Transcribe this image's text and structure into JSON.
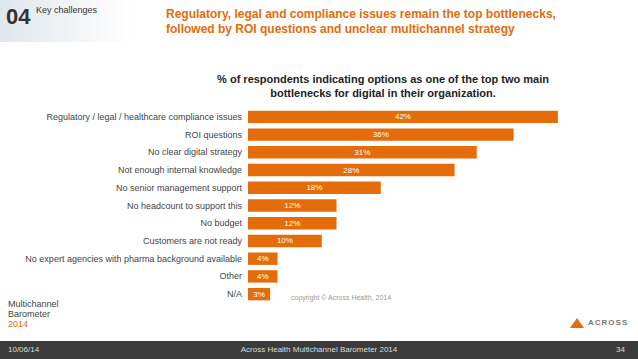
{
  "chart_data": {
    "type": "bar",
    "title": "% of respondents indicating options as one of the top two main bottlenecks for digital in their organization.",
    "categories": [
      "Regulatory / legal / healthcare compliance issues",
      "ROI questions",
      "No clear digital strategy",
      "Not enough internal knowledge",
      "No senior management support",
      "No headcount to support this",
      "No budget",
      "Customers are not ready",
      "No expert agencies with pharma background available",
      "Other",
      "N/A"
    ],
    "values": [
      42,
      36,
      31,
      28,
      18,
      12,
      12,
      10,
      4,
      4,
      3
    ],
    "value_labels": [
      "42%",
      "36%",
      "31%",
      "28%",
      "18%",
      "12%",
      "12%",
      "10%",
      "4%",
      "4%",
      "3%"
    ],
    "color": "#e46c0a",
    "orientation": "horizontal",
    "data_labels": true,
    "tick_labels": "y",
    "grid": false,
    "xlim": [
      0,
      45
    ],
    "annotations": [
      "copyright © Across Health, 2014"
    ]
  },
  "slide": {
    "section_number": "04",
    "section_name": "Key challenges",
    "headline": [
      "Regulatory, legal and compliance issues remain the top bottlenecks,",
      "followed by ROI questions and unclear multichannel strategy"
    ],
    "logo": [
      "Multichannel",
      "Barometer",
      "2014"
    ],
    "brand": "ACROSS",
    "footer": {
      "date": "10/06/14",
      "source": "Across Health Multichannel Barometer 2014",
      "page": "34"
    }
  }
}
